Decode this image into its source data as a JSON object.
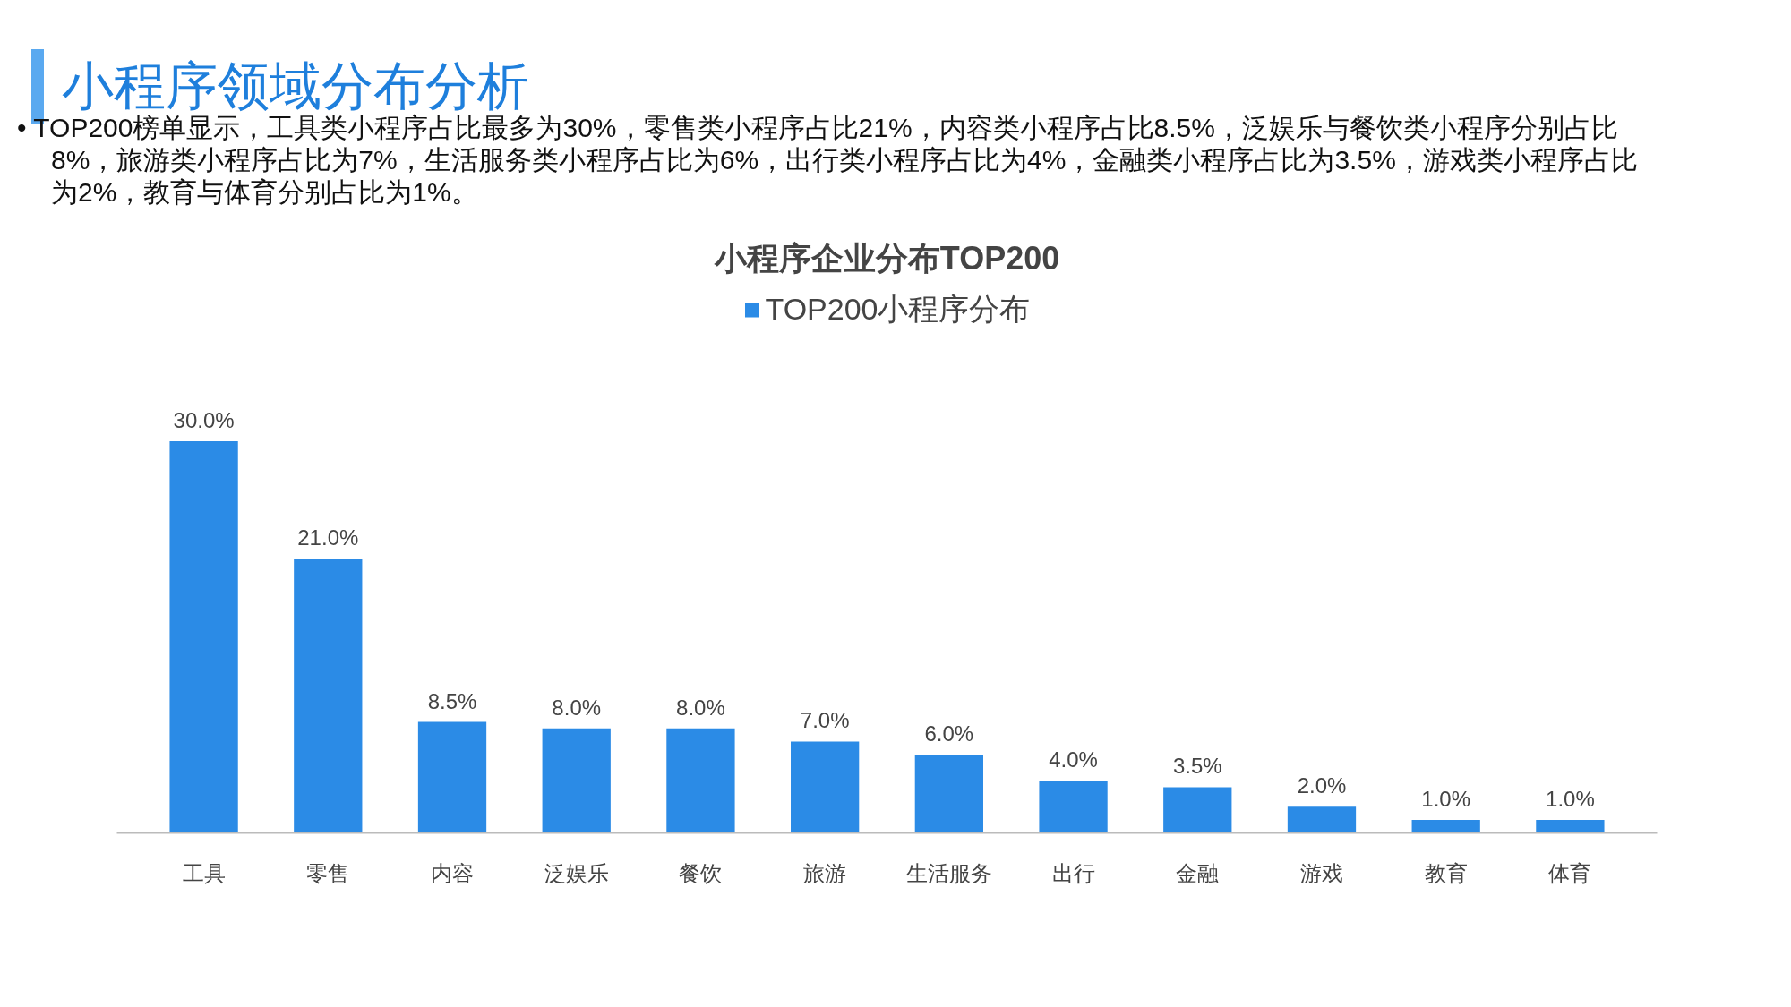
{
  "chart_data": {
    "type": "bar",
    "title": "小程序企业分布TOP200",
    "annotations": [
      "小程序领域分布分析",
      "• TOP200榜单显示，工具类小程序占比最多为30%，零售类小程序占比21%，内容类小程序占比8.5%，泛娱乐与餐饮类小程序分别占比8%，旅游类小程序占比为7%，生活服务类小程序占比为6%，出行类小程序占比为4%，金融类小程序占比为3.5%，游戏类小程序占比为2%，教育与体育分别占比为1%。"
    ],
    "categories": [
      "工具",
      "零售",
      "内容",
      "泛娱乐",
      "餐饮",
      "旅游",
      "生活服务",
      "出行",
      "金融",
      "游戏",
      "教育",
      "体育"
    ],
    "series": [
      {
        "name": "TOP200小程序分布",
        "color": "#2b8be6",
        "values": [
          30,
          21,
          8.5,
          8,
          8,
          7,
          6,
          4,
          3.5,
          2,
          1,
          1
        ],
        "value_labels": [
          "30.0%",
          "21.0%",
          "8.5%",
          "8.0%",
          "8.0%",
          "7.0%",
          "6.0%",
          "4.0%",
          "3.5%",
          "2.0%",
          "1.0%",
          "1.0%"
        ]
      }
    ],
    "legend": "top",
    "grid": false,
    "tick_labels": "x"
  }
}
